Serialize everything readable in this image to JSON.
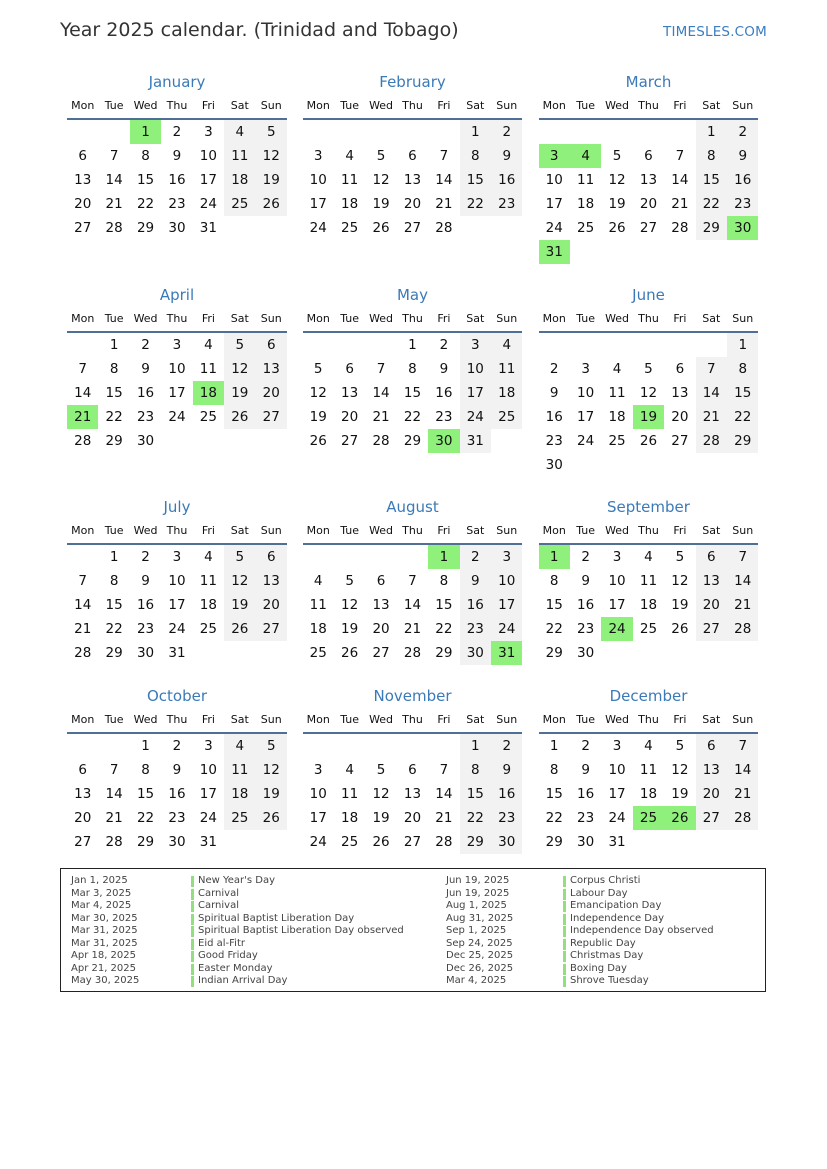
{
  "header": {
    "title": "Year 2025 calendar. (Trinidad and Tobago)",
    "brand": "TIMESLES.COM"
  },
  "colors": {
    "holiday": "#90f07c",
    "weekend": "#f2f2f2",
    "month_title": "#3a7ab8",
    "brand": "#3b7dc0"
  },
  "weekdays": [
    "Mon",
    "Tue",
    "Wed",
    "Thu",
    "Fri",
    "Sat",
    "Sun"
  ],
  "months": [
    {
      "name": "January",
      "start_weekday": 3,
      "days": 31,
      "holidays": [
        1
      ]
    },
    {
      "name": "February",
      "start_weekday": 6,
      "days": 28,
      "holidays": []
    },
    {
      "name": "March",
      "start_weekday": 6,
      "days": 31,
      "holidays": [
        3,
        4,
        30,
        31
      ]
    },
    {
      "name": "April",
      "start_weekday": 2,
      "days": 30,
      "holidays": [
        18,
        21
      ]
    },
    {
      "name": "May",
      "start_weekday": 4,
      "days": 31,
      "holidays": [
        30
      ]
    },
    {
      "name": "June",
      "start_weekday": 7,
      "days": 30,
      "holidays": [
        19
      ]
    },
    {
      "name": "July",
      "start_weekday": 2,
      "days": 31,
      "holidays": []
    },
    {
      "name": "August",
      "start_weekday": 5,
      "days": 31,
      "holidays": [
        1,
        31
      ]
    },
    {
      "name": "September",
      "start_weekday": 1,
      "days": 30,
      "holidays": [
        1,
        24
      ]
    },
    {
      "name": "October",
      "start_weekday": 3,
      "days": 31,
      "holidays": []
    },
    {
      "name": "November",
      "start_weekday": 6,
      "days": 30,
      "holidays": []
    },
    {
      "name": "December",
      "start_weekday": 1,
      "days": 31,
      "holidays": [
        25,
        26
      ]
    }
  ],
  "holiday_list": [
    {
      "date": "Jan 1, 2025",
      "name": "New Year's Day"
    },
    {
      "date": "Mar 3, 2025",
      "name": "Carnival"
    },
    {
      "date": "Mar 4, 2025",
      "name": "Carnival"
    },
    {
      "date": "Mar 30, 2025",
      "name": "Spiritual Baptist Liberation Day"
    },
    {
      "date": "Mar 31, 2025",
      "name": "Spiritual Baptist Liberation Day observed"
    },
    {
      "date": "Mar 31, 2025",
      "name": "Eid al-Fitr"
    },
    {
      "date": "Apr 18, 2025",
      "name": "Good Friday"
    },
    {
      "date": "Apr 21, 2025",
      "name": "Easter Monday"
    },
    {
      "date": "May 30, 2025",
      "name": "Indian Arrival Day"
    },
    {
      "date": "Jun 19, 2025",
      "name": "Corpus Christi"
    },
    {
      "date": "Jun 19, 2025",
      "name": "Labour Day"
    },
    {
      "date": "Aug 1, 2025",
      "name": "Emancipation Day"
    },
    {
      "date": "Aug 31, 2025",
      "name": "Independence Day"
    },
    {
      "date": "Sep 1, 2025",
      "name": "Independence Day observed"
    },
    {
      "date": "Sep 24, 2025",
      "name": "Republic Day"
    },
    {
      "date": "Dec 25, 2025",
      "name": "Christmas Day"
    },
    {
      "date": "Dec 26, 2025",
      "name": "Boxing Day"
    },
    {
      "date": "Mar 4, 2025",
      "name": "Shrove Tuesday"
    }
  ]
}
